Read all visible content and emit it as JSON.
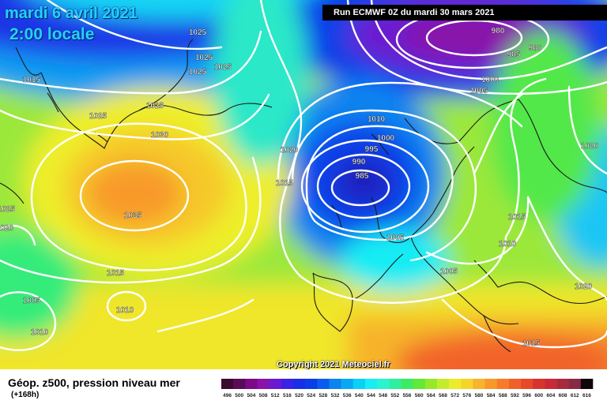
{
  "header": {
    "date": "mardi 6 avril 2021",
    "local_time": "2:00 locale",
    "run": "Run ECMWF 0Z du mardi 30 mars 2021"
  },
  "map": {
    "credit": "Copyright 2021 Meteociel.fr",
    "pressure_labels": [
      "1025",
      "1025",
      "1025",
      "1025",
      "1025",
      "1015",
      "1025",
      "1030",
      "1035",
      "1015",
      "1005",
      "1010",
      "1010",
      "1025",
      "1020",
      "980",
      "980",
      "985",
      "1000",
      "1005",
      "1010",
      "1000",
      "995",
      "990",
      "985",
      "1020",
      "1015",
      "1005",
      "1015",
      "1010",
      "1005",
      "1020",
      "1020",
      "1015"
    ],
    "centers": [
      {
        "type": "high",
        "value": "1035"
      },
      {
        "type": "low",
        "value": "985"
      },
      {
        "type": "low",
        "value": "980"
      }
    ]
  },
  "footer": {
    "field_title": "Géop. z500, pression niveau mer",
    "lead_time": "(+168h)"
  },
  "legend": {
    "unit_values": [
      "496",
      "500",
      "504",
      "508",
      "512",
      "516",
      "520",
      "524",
      "528",
      "532",
      "536",
      "540",
      "544",
      "548",
      "552",
      "556",
      "560",
      "564",
      "568",
      "572",
      "576",
      "580",
      "584",
      "588",
      "592",
      "596",
      "600",
      "604",
      "608",
      "612",
      "616"
    ],
    "colors": [
      "#3c0a2f",
      "#5a0a5a",
      "#7a0a86",
      "#8a12a8",
      "#6a1ad0",
      "#3a22e6",
      "#1a2ee8",
      "#0a3ee8",
      "#0a5cec",
      "#0a84f0",
      "#0aa8f4",
      "#0ad0f8",
      "#18ecf4",
      "#2af4d0",
      "#2ef0a0",
      "#3aec64",
      "#62e838",
      "#96e82a",
      "#c4ec2a",
      "#ecec2a",
      "#f6d42a",
      "#f8b42a",
      "#f8982a",
      "#f67c2a",
      "#f2602a",
      "#e8482a",
      "#d8342e",
      "#c82a36",
      "#a82a3e",
      "#862a46",
      "#10060c"
    ]
  },
  "colors": {
    "title_text": "#24d0ff",
    "isobar": "#ffffff",
    "coast": "#1a1a1a"
  }
}
